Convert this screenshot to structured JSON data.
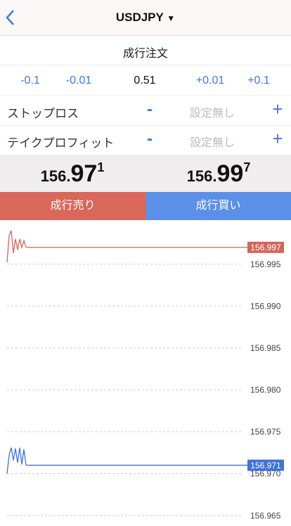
{
  "header": {
    "title": "USDJPY"
  },
  "order_type": "成行注文",
  "lot": {
    "buttons": [
      "-0.1",
      "-0.01",
      "+0.01",
      "+0.1"
    ],
    "value": "0.51"
  },
  "stop_loss": {
    "label": "ストップロス",
    "minus": "-",
    "value": "設定無し",
    "plus": "+"
  },
  "take_profit": {
    "label": "テイクプロフィット",
    "minus": "-",
    "value": "設定無し",
    "plus": "+"
  },
  "prices": {
    "sell": {
      "prefix": "156.",
      "pips": "97",
      "point": "1"
    },
    "buy": {
      "prefix": "156.",
      "pips": "99",
      "point": "7"
    }
  },
  "buttons": {
    "sell": "成行売り",
    "buy": "成行買い"
  },
  "chart": {
    "type": "line",
    "grid": true,
    "ylim": [
      156.964,
      157.0
    ],
    "yticks": [
      156.995,
      {
        "value": 156.99,
        "label": "156.990"
      },
      156.985,
      {
        "value": 156.98,
        "label": "156.980"
      },
      156.975,
      {
        "value": 156.97,
        "label": "156.970"
      },
      156.965
    ],
    "series": [
      {
        "color": "#d2655a",
        "values": [
          156.9952,
          156.9984,
          156.999,
          156.9963,
          156.998,
          156.9967,
          156.998,
          156.997,
          156.9978,
          156.997
        ]
      },
      {
        "color": "#3f72d8",
        "values": [
          156.97,
          156.9722,
          156.9731,
          156.9716,
          156.973,
          156.9713,
          156.9731,
          156.9711,
          156.9729,
          156.971
        ]
      }
    ]
  }
}
